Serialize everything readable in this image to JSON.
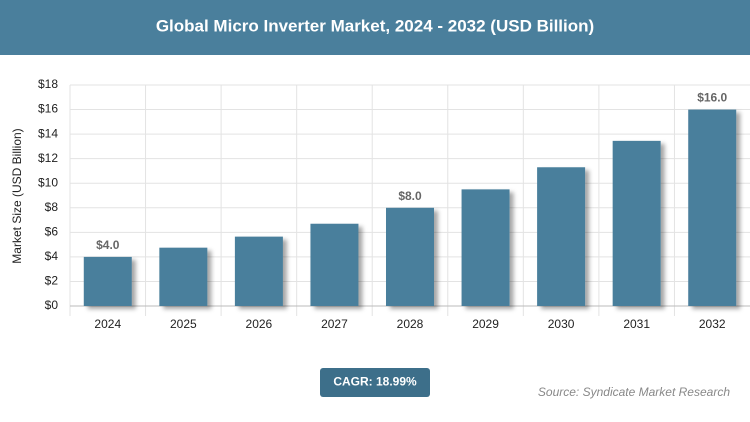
{
  "chart_data": {
    "type": "bar",
    "title": "Global Micro Inverter Market, 2024 - 2032 (USD Billion)",
    "y_label": "Market Size (USD Billion)",
    "categories": [
      "2024",
      "2025",
      "2026",
      "2027",
      "2028",
      "2029",
      "2030",
      "2031",
      "2032"
    ],
    "values": [
      4.0,
      4.75,
      5.65,
      6.7,
      8.0,
      9.5,
      11.3,
      13.45,
      16.0
    ],
    "value_labels": [
      "$4.0",
      null,
      null,
      null,
      "$8.0",
      null,
      null,
      null,
      "$16.0"
    ],
    "color": "#4a7f9c",
    "ylim": [
      0,
      18
    ],
    "yticks": [
      {
        "value": 0,
        "label": "$0"
      },
      {
        "value": 2,
        "label": "$2"
      },
      {
        "value": 4,
        "label": "$4"
      },
      {
        "value": 6,
        "label": "$6"
      },
      {
        "value": 8,
        "label": "$8"
      },
      {
        "value": 10,
        "label": "$10"
      },
      {
        "value": 12,
        "label": "$12"
      },
      {
        "value": 14,
        "label": "$14"
      },
      {
        "value": 16,
        "label": "$16"
      },
      {
        "value": 18,
        "label": "$18"
      }
    ],
    "grid": true,
    "cagr": "CAGR: 18.99%",
    "source": "Source: Syndicate Market Research"
  }
}
